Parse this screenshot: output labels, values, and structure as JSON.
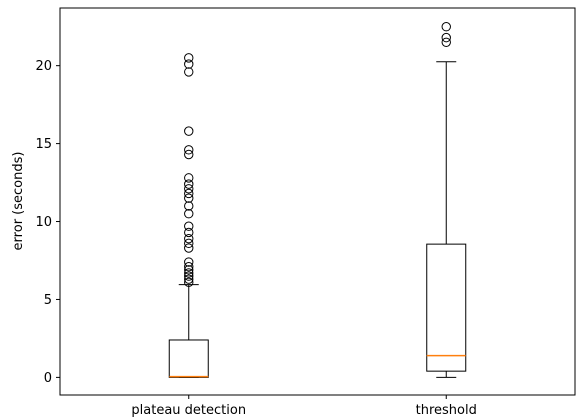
{
  "chart_data": {
    "type": "box",
    "categories": [
      "plateau detection",
      "threshold"
    ],
    "ylabel": "error (seconds)",
    "xlabel": "",
    "ylim": [
      -1.13,
      23.7
    ],
    "yticks": [
      0,
      5,
      10,
      15,
      20
    ],
    "grid": false,
    "series": [
      {
        "category": "plateau detection",
        "whisker_low": 0.0,
        "q1": 0.0,
        "median": 0.05,
        "q3": 2.4,
        "whisker_high": 5.95,
        "outliers": [
          6.1,
          6.3,
          6.5,
          6.7,
          6.9,
          7.1,
          7.4,
          8.3,
          8.6,
          8.9,
          9.3,
          9.7,
          10.5,
          11.0,
          11.5,
          11.8,
          12.1,
          12.4,
          12.8,
          14.3,
          14.6,
          15.8,
          19.6,
          20.1,
          20.5
        ]
      },
      {
        "category": "threshold",
        "whisker_low": 0.0,
        "q1": 0.4,
        "median": 1.4,
        "q3": 8.55,
        "whisker_high": 20.25,
        "outliers": [
          21.5,
          21.8,
          22.5
        ]
      }
    ],
    "colors": {
      "box": "#000000",
      "median": "#ff7f0e",
      "outlier": "#000000",
      "axes": "#000000"
    }
  }
}
